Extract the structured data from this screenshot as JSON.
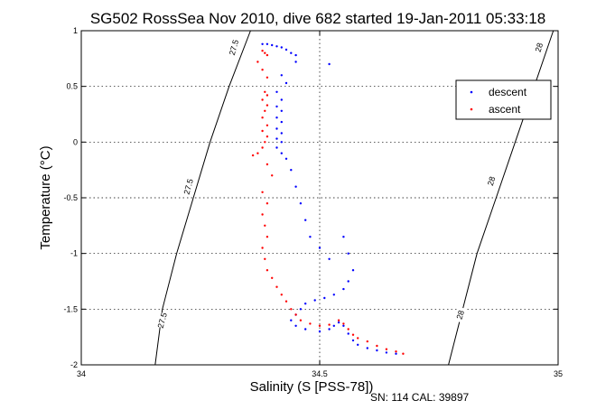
{
  "chart_data": {
    "type": "scatter",
    "title": "SG502 RossSea Nov 2010, dive 682 started 19-Jan-2011 05:33:18",
    "xlabel": "Salinity (S [PSS-78])",
    "ylabel": "Temperature (°C)",
    "xlim": [
      34,
      35
    ],
    "ylim": [
      -2,
      1
    ],
    "x_ticks": [
      {
        "value": 34,
        "label": "34"
      },
      {
        "value": 34.5,
        "label": "34.5"
      },
      {
        "value": 35,
        "label": "35"
      }
    ],
    "y_ticks": [
      {
        "value": -2,
        "label": "-2"
      },
      {
        "value": -1.5,
        "label": "-1.5"
      },
      {
        "value": -1,
        "label": "-1"
      },
      {
        "value": -0.5,
        "label": "-0.5"
      },
      {
        "value": 0,
        "label": "0"
      },
      {
        "value": 0.5,
        "label": "0.5"
      },
      {
        "value": 1,
        "label": "1"
      }
    ],
    "grid": true,
    "legend_position": "top-right",
    "contours": [
      {
        "label": "27.5",
        "points": [
          [
            34.155,
            -2.0
          ],
          [
            34.17,
            -1.5
          ],
          [
            34.2,
            -1.0
          ],
          [
            34.235,
            -0.5
          ],
          [
            34.27,
            0.0
          ],
          [
            34.31,
            0.5
          ],
          [
            34.355,
            1.0
          ]
        ],
        "label_positions": [
          [
            34.17,
            -1.6
          ],
          [
            34.225,
            -0.4
          ],
          [
            34.32,
            0.85
          ]
        ]
      },
      {
        "label": "28",
        "points": [
          [
            34.77,
            -2.0
          ],
          [
            34.8,
            -1.5
          ],
          [
            34.83,
            -1.0
          ],
          [
            34.87,
            -0.5
          ],
          [
            34.91,
            0.0
          ],
          [
            34.95,
            0.5
          ],
          [
            34.99,
            1.0
          ]
        ],
        "label_positions": [
          [
            34.795,
            -1.55
          ],
          [
            34.86,
            -0.35
          ],
          [
            34.96,
            0.85
          ]
        ]
      }
    ],
    "series": [
      {
        "name": "descent",
        "color": "#0000ff",
        "points": [
          [
            34.38,
            0.88
          ],
          [
            34.39,
            0.88
          ],
          [
            34.4,
            0.87
          ],
          [
            34.41,
            0.86
          ],
          [
            34.42,
            0.85
          ],
          [
            34.43,
            0.83
          ],
          [
            34.44,
            0.8
          ],
          [
            34.45,
            0.78
          ],
          [
            34.45,
            0.72
          ],
          [
            34.52,
            0.7
          ],
          [
            34.42,
            0.6
          ],
          [
            34.43,
            0.53
          ],
          [
            34.41,
            0.45
          ],
          [
            34.42,
            0.38
          ],
          [
            34.41,
            0.32
          ],
          [
            34.42,
            0.28
          ],
          [
            34.41,
            0.22
          ],
          [
            34.42,
            0.18
          ],
          [
            34.41,
            0.12
          ],
          [
            34.42,
            0.08
          ],
          [
            34.41,
            0.03
          ],
          [
            34.42,
            0.0
          ],
          [
            34.41,
            -0.05
          ],
          [
            34.42,
            -0.1
          ],
          [
            34.43,
            -0.15
          ],
          [
            34.44,
            -0.25
          ],
          [
            34.45,
            -0.4
          ],
          [
            34.46,
            -0.55
          ],
          [
            34.47,
            -0.7
          ],
          [
            34.48,
            -0.85
          ],
          [
            34.5,
            -0.95
          ],
          [
            34.52,
            -1.05
          ],
          [
            34.55,
            -0.85
          ],
          [
            34.56,
            -1.0
          ],
          [
            34.57,
            -1.15
          ],
          [
            34.56,
            -1.25
          ],
          [
            34.55,
            -1.32
          ],
          [
            34.53,
            -1.37
          ],
          [
            34.51,
            -1.4
          ],
          [
            34.49,
            -1.42
          ],
          [
            34.47,
            -1.45
          ],
          [
            34.46,
            -1.5
          ],
          [
            34.45,
            -1.55
          ],
          [
            34.44,
            -1.6
          ],
          [
            34.45,
            -1.65
          ],
          [
            34.47,
            -1.68
          ],
          [
            34.5,
            -1.7
          ],
          [
            34.52,
            -1.68
          ],
          [
            34.53,
            -1.65
          ],
          [
            34.54,
            -1.62
          ],
          [
            34.55,
            -1.65
          ],
          [
            34.56,
            -1.72
          ],
          [
            34.57,
            -1.78
          ],
          [
            34.58,
            -1.82
          ],
          [
            34.6,
            -1.85
          ],
          [
            34.62,
            -1.87
          ],
          [
            34.64,
            -1.89
          ],
          [
            34.66,
            -1.9
          ]
        ]
      },
      {
        "name": "ascent",
        "color": "#ff0000",
        "points": [
          [
            34.38,
            0.82
          ],
          [
            34.385,
            0.8
          ],
          [
            34.39,
            0.78
          ],
          [
            34.37,
            0.72
          ],
          [
            34.38,
            0.65
          ],
          [
            34.39,
            0.58
          ],
          [
            34.385,
            0.45
          ],
          [
            34.39,
            0.42
          ],
          [
            34.38,
            0.38
          ],
          [
            34.39,
            0.33
          ],
          [
            34.385,
            0.28
          ],
          [
            34.38,
            0.22
          ],
          [
            34.39,
            0.15
          ],
          [
            34.38,
            0.1
          ],
          [
            34.39,
            0.05
          ],
          [
            34.385,
            0.0
          ],
          [
            34.38,
            -0.05
          ],
          [
            34.37,
            -0.1
          ],
          [
            34.36,
            -0.12
          ],
          [
            34.39,
            -0.2
          ],
          [
            34.4,
            -0.3
          ],
          [
            34.38,
            -0.45
          ],
          [
            34.39,
            -0.55
          ],
          [
            34.38,
            -0.65
          ],
          [
            34.385,
            -0.75
          ],
          [
            34.39,
            -0.85
          ],
          [
            34.38,
            -0.95
          ],
          [
            34.385,
            -1.05
          ],
          [
            34.39,
            -1.15
          ],
          [
            34.4,
            -1.22
          ],
          [
            34.41,
            -1.3
          ],
          [
            34.42,
            -1.37
          ],
          [
            34.43,
            -1.43
          ],
          [
            34.44,
            -1.5
          ],
          [
            34.45,
            -1.55
          ],
          [
            34.46,
            -1.6
          ],
          [
            34.48,
            -1.63
          ],
          [
            34.5,
            -1.65
          ],
          [
            34.52,
            -1.64
          ],
          [
            34.54,
            -1.6
          ],
          [
            34.55,
            -1.63
          ],
          [
            34.56,
            -1.68
          ],
          [
            34.57,
            -1.73
          ],
          [
            34.58,
            -1.76
          ],
          [
            34.6,
            -1.79
          ],
          [
            34.62,
            -1.83
          ],
          [
            34.64,
            -1.86
          ],
          [
            34.66,
            -1.88
          ],
          [
            34.675,
            -1.9
          ]
        ]
      }
    ]
  },
  "footer": "SN: 114  CAL: 39897"
}
